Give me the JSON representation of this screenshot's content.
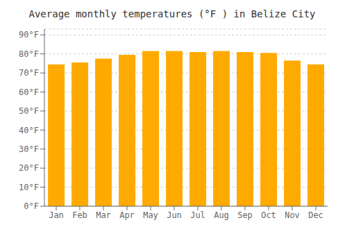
{
  "chart_data": {
    "type": "bar",
    "title": "Average monthly temperatures (°F ) in Belize City",
    "categories": [
      "Jan",
      "Feb",
      "Mar",
      "Apr",
      "May",
      "Jun",
      "Jul",
      "Aug",
      "Sep",
      "Oct",
      "Nov",
      "Dec"
    ],
    "values": [
      74.5,
      75.5,
      77.5,
      79.5,
      81.5,
      81.5,
      81.0,
      81.5,
      81.0,
      80.5,
      76.5,
      74.5
    ],
    "color": "#FFAA00",
    "ylim": [
      0,
      93
    ],
    "yticks": [
      {
        "value": 0,
        "label": "0°F"
      },
      {
        "value": 10,
        "label": "10°F"
      },
      {
        "value": 20,
        "label": "20°F"
      },
      {
        "value": 30,
        "label": "30°F"
      },
      {
        "value": 40,
        "label": "40°F"
      },
      {
        "value": 50,
        "label": "50°F"
      },
      {
        "value": 60,
        "label": "60°F"
      },
      {
        "value": 70,
        "label": "70°F"
      },
      {
        "value": 80,
        "label": "80°F"
      },
      {
        "value": 90,
        "label": "90°F"
      }
    ],
    "grid": true
  }
}
